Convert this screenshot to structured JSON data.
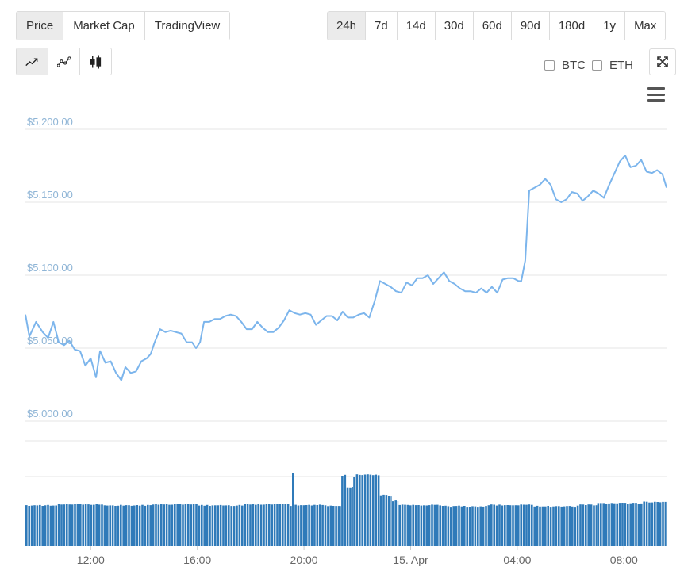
{
  "tabs": [
    {
      "label": "Price",
      "active": true
    },
    {
      "label": "Market Cap",
      "active": false
    },
    {
      "label": "TradingView",
      "active": false
    }
  ],
  "ranges": [
    {
      "label": "24h",
      "active": true
    },
    {
      "label": "7d",
      "active": false
    },
    {
      "label": "14d",
      "active": false
    },
    {
      "label": "30d",
      "active": false
    },
    {
      "label": "60d",
      "active": false
    },
    {
      "label": "90d",
      "active": false
    },
    {
      "label": "180d",
      "active": false
    },
    {
      "label": "1y",
      "active": false
    },
    {
      "label": "Max",
      "active": false
    }
  ],
  "chart_types": [
    {
      "icon": "line-chart-icon",
      "active": true
    },
    {
      "icon": "dotted-line-chart-icon",
      "active": false
    },
    {
      "icon": "candlestick-chart-icon",
      "active": false
    }
  ],
  "compare": {
    "btc": {
      "label": "BTC",
      "checked": false
    },
    "eth": {
      "label": "ETH",
      "checked": false
    }
  },
  "toolbar": {
    "fullscreen_icon": "expand-icon",
    "menu_icon": "hamburger-menu-icon"
  },
  "colors": {
    "line": "#7cb5ec",
    "volume": "#2f7ab9",
    "grid": "#e6e6e6",
    "axis_label": "#8fb5d6"
  },
  "chart_data": [
    {
      "type": "line",
      "title": "",
      "ylabel": "",
      "ylim": [
        4975,
        5220
      ],
      "y_ticks": [
        {
          "value": 5000,
          "label": "$5,000.00"
        },
        {
          "value": 5050,
          "label": "$5,050.00"
        },
        {
          "value": 5100,
          "label": "$5,100.00"
        },
        {
          "value": 5150,
          "label": "$5,150.00"
        },
        {
          "value": 5200,
          "label": "$5,200.00"
        }
      ],
      "x_ticks": [
        {
          "hour": 12,
          "label": "12:00"
        },
        {
          "hour": 16,
          "label": "16:00"
        },
        {
          "hour": 20,
          "label": "20:00"
        },
        {
          "hour": 24,
          "label": "15. Apr"
        },
        {
          "hour": 28,
          "label": "04:00"
        },
        {
          "hour": 32,
          "label": "08:00"
        }
      ],
      "xlim": [
        9.55,
        33.6
      ],
      "series": [
        {
          "points": [
            [
              9.55,
              5073
            ],
            [
              9.7,
              5058
            ],
            [
              9.95,
              5068
            ],
            [
              10.2,
              5061
            ],
            [
              10.4,
              5057
            ],
            [
              10.6,
              5068
            ],
            [
              10.8,
              5054
            ],
            [
              11.0,
              5052
            ],
            [
              11.2,
              5055
            ],
            [
              11.4,
              5049
            ],
            [
              11.6,
              5048
            ],
            [
              11.8,
              5038
            ],
            [
              12.0,
              5043
            ],
            [
              12.2,
              5030
            ],
            [
              12.35,
              5048
            ],
            [
              12.55,
              5040
            ],
            [
              12.75,
              5041
            ],
            [
              12.95,
              5033
            ],
            [
              13.15,
              5028
            ],
            [
              13.3,
              5037
            ],
            [
              13.5,
              5033
            ],
            [
              13.7,
              5034
            ],
            [
              13.9,
              5041
            ],
            [
              14.1,
              5043
            ],
            [
              14.25,
              5046
            ],
            [
              14.4,
              5054
            ],
            [
              14.6,
              5063
            ],
            [
              14.8,
              5061
            ],
            [
              15.0,
              5062
            ],
            [
              15.2,
              5061
            ],
            [
              15.4,
              5060
            ],
            [
              15.6,
              5054
            ],
            [
              15.8,
              5054
            ],
            [
              15.95,
              5050
            ],
            [
              16.1,
              5054
            ],
            [
              16.25,
              5068
            ],
            [
              16.45,
              5068
            ],
            [
              16.65,
              5070
            ],
            [
              16.85,
              5070
            ],
            [
              17.05,
              5072
            ],
            [
              17.25,
              5073
            ],
            [
              17.45,
              5072
            ],
            [
              17.65,
              5068
            ],
            [
              17.85,
              5063
            ],
            [
              18.05,
              5063
            ],
            [
              18.25,
              5068
            ],
            [
              18.45,
              5064
            ],
            [
              18.65,
              5061
            ],
            [
              18.85,
              5061
            ],
            [
              19.05,
              5064
            ],
            [
              19.25,
              5069
            ],
            [
              19.45,
              5076
            ],
            [
              19.65,
              5074
            ],
            [
              19.85,
              5073
            ],
            [
              20.05,
              5074
            ],
            [
              20.25,
              5073
            ],
            [
              20.45,
              5066
            ],
            [
              20.65,
              5069
            ],
            [
              20.85,
              5072
            ],
            [
              21.05,
              5072
            ],
            [
              21.25,
              5069
            ],
            [
              21.45,
              5075
            ],
            [
              21.65,
              5071
            ],
            [
              21.85,
              5071
            ],
            [
              22.05,
              5073
            ],
            [
              22.25,
              5074
            ],
            [
              22.45,
              5071
            ],
            [
              22.65,
              5082
            ],
            [
              22.85,
              5096
            ],
            [
              23.05,
              5094
            ],
            [
              23.25,
              5092
            ],
            [
              23.45,
              5089
            ],
            [
              23.65,
              5088
            ],
            [
              23.85,
              5095
            ],
            [
              24.05,
              5093
            ],
            [
              24.25,
              5098
            ],
            [
              24.45,
              5098
            ],
            [
              24.65,
              5100
            ],
            [
              24.85,
              5094
            ],
            [
              25.05,
              5098
            ],
            [
              25.25,
              5102
            ],
            [
              25.45,
              5096
            ],
            [
              25.65,
              5094
            ],
            [
              25.85,
              5091
            ],
            [
              26.05,
              5089
            ],
            [
              26.25,
              5089
            ],
            [
              26.45,
              5088
            ],
            [
              26.65,
              5091
            ],
            [
              26.85,
              5088
            ],
            [
              27.05,
              5092
            ],
            [
              27.25,
              5088
            ],
            [
              27.45,
              5097
            ],
            [
              27.65,
              5098
            ],
            [
              27.85,
              5098
            ],
            [
              28.05,
              5096
            ],
            [
              28.15,
              5096
            ],
            [
              28.3,
              5110
            ],
            [
              28.45,
              5158
            ],
            [
              28.65,
              5160
            ],
            [
              28.85,
              5162
            ],
            [
              29.05,
              5166
            ],
            [
              29.25,
              5162
            ],
            [
              29.45,
              5152
            ],
            [
              29.65,
              5150
            ],
            [
              29.85,
              5152
            ],
            [
              30.05,
              5157
            ],
            [
              30.25,
              5156
            ],
            [
              30.45,
              5151
            ],
            [
              30.65,
              5154
            ],
            [
              30.85,
              5158
            ],
            [
              31.05,
              5156
            ],
            [
              31.25,
              5153
            ],
            [
              31.45,
              5162
            ],
            [
              31.65,
              5170
            ],
            [
              31.85,
              5178
            ],
            [
              32.05,
              5182
            ],
            [
              32.25,
              5174
            ],
            [
              32.45,
              5175
            ],
            [
              32.65,
              5179
            ],
            [
              32.85,
              5171
            ],
            [
              33.05,
              5170
            ],
            [
              33.25,
              5172
            ],
            [
              33.45,
              5169
            ],
            [
              33.6,
              5160
            ]
          ]
        }
      ]
    },
    {
      "type": "bar",
      "title": "",
      "ylabel": "",
      "volume_levels": [
        {
          "start_hour": 9.55,
          "end_hour": 19.55,
          "value": 54
        },
        {
          "start_hour": 19.55,
          "end_hour": 19.65,
          "value": 95
        },
        {
          "start_hour": 19.65,
          "end_hour": 21.4,
          "value": 53
        },
        {
          "start_hour": 21.4,
          "end_hour": 21.6,
          "value": 94
        },
        {
          "start_hour": 21.6,
          "end_hour": 21.85,
          "value": 78
        },
        {
          "start_hour": 21.85,
          "end_hour": 22.85,
          "value": 93
        },
        {
          "start_hour": 22.85,
          "end_hour": 23.3,
          "value": 66
        },
        {
          "start_hour": 23.3,
          "end_hour": 23.55,
          "value": 60
        },
        {
          "start_hour": 23.55,
          "end_hour": 31.0,
          "value": 53
        },
        {
          "start_hour": 31.0,
          "end_hour": 33.6,
          "value": 57
        }
      ],
      "ylim": [
        0,
        100
      ]
    }
  ]
}
